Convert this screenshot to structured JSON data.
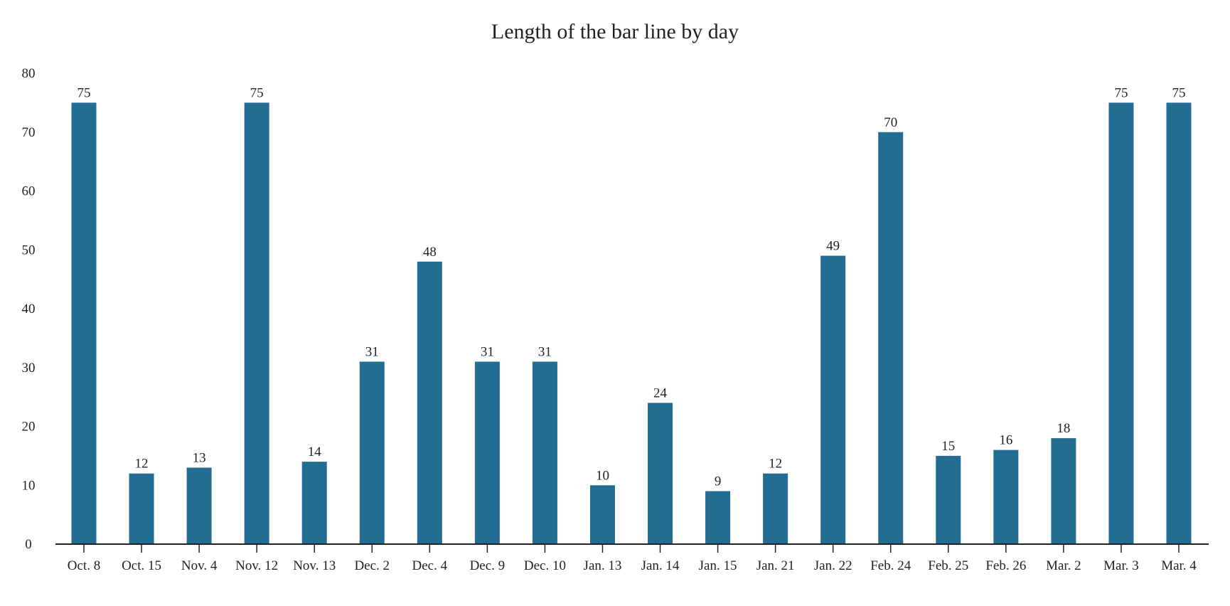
{
  "chart_data": {
    "type": "bar",
    "title": "Length of the bar line by day",
    "xlabel": "",
    "ylabel": "",
    "ylim": [
      0,
      80
    ],
    "yticks": [
      0,
      10,
      20,
      30,
      40,
      50,
      60,
      70,
      80
    ],
    "grid": false,
    "legend": "none",
    "bar_color": "#236d93",
    "categories": [
      "Oct. 8",
      "Oct. 15",
      "Nov. 4",
      "Nov. 12",
      "Nov. 13",
      "Dec. 2",
      "Dec. 4",
      "Dec. 9",
      "Dec. 10",
      "Jan. 13",
      "Jan. 14",
      "Jan. 15",
      "Jan. 21",
      "Jan. 22",
      "Feb. 24",
      "Feb. 25",
      "Feb. 26",
      "Mar. 2",
      "Mar. 3",
      "Mar. 4"
    ],
    "values": [
      75,
      12,
      13,
      75,
      14,
      31,
      48,
      31,
      31,
      10,
      24,
      9,
      12,
      49,
      70,
      15,
      16,
      18,
      75,
      75
    ]
  }
}
